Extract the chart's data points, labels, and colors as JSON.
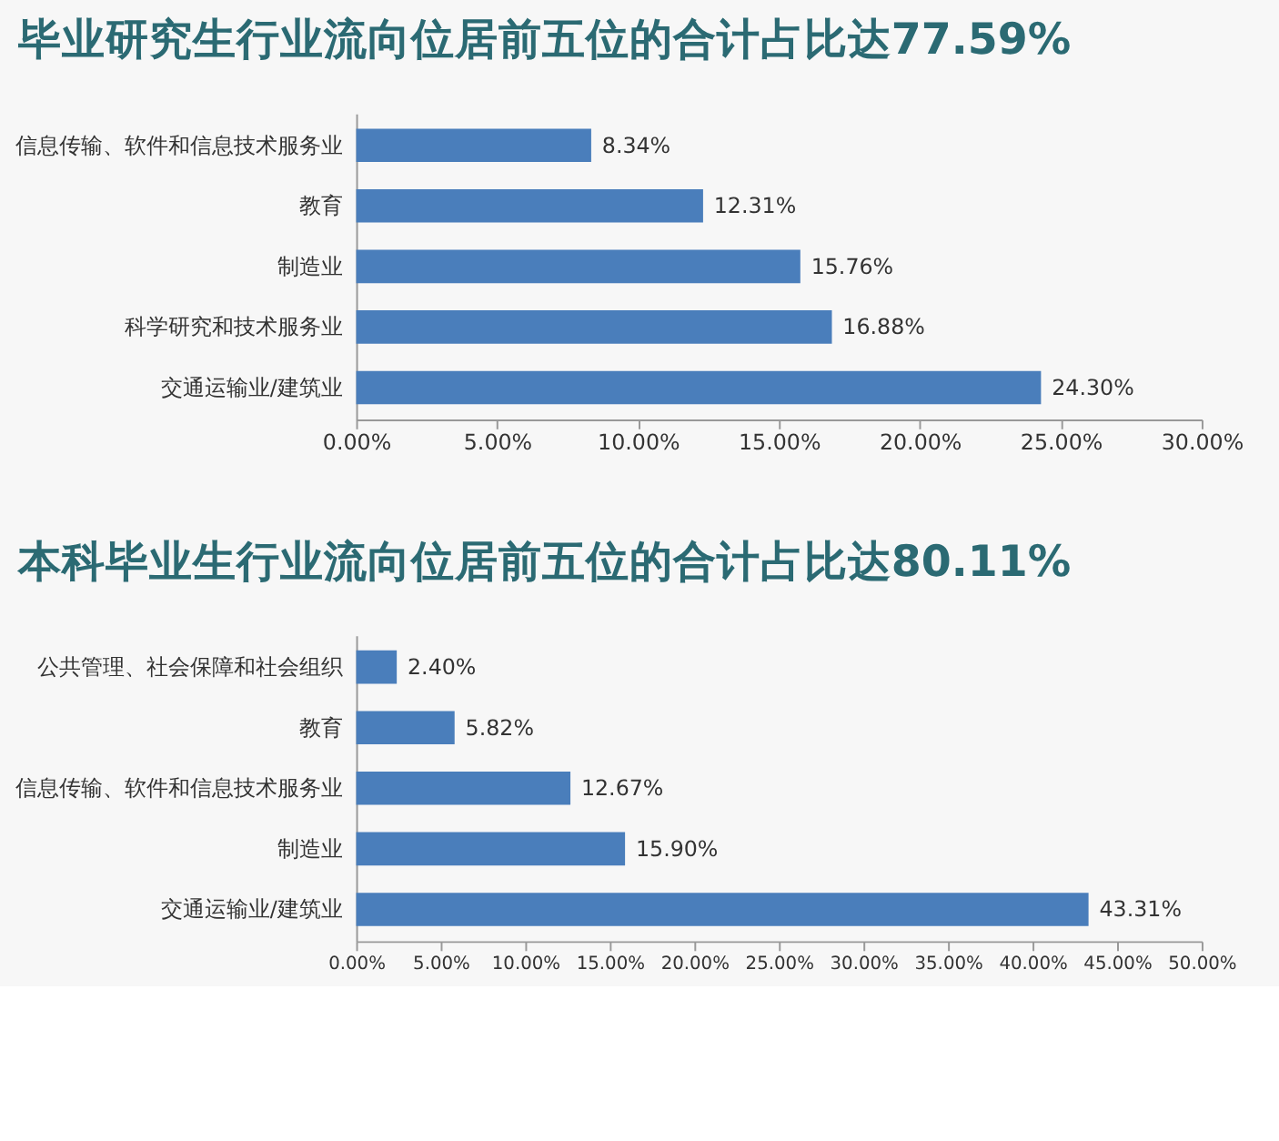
{
  "chart_data": [
    {
      "type": "bar",
      "orientation": "horizontal",
      "title": "毕业研究生行业流向位居前五位的合计占比达77.59%",
      "categories": [
        "信息传输、软件和信息技术服务业",
        "教育",
        "制造业",
        "科学研究和技术服务业",
        "交通运输业/建筑业"
      ],
      "values": [
        8.34,
        12.31,
        15.76,
        16.88,
        24.3
      ],
      "value_labels": [
        "8.34%",
        "12.31%",
        "15.76%",
        "16.88%",
        "24.30%"
      ],
      "color": "#4a7ebb",
      "xlim": [
        0,
        30
      ],
      "xticks": [
        {
          "value": 0,
          "label": "0.00%"
        },
        {
          "value": 5,
          "label": "5.00%"
        },
        {
          "value": 10,
          "label": "10.00%"
        },
        {
          "value": 15,
          "label": "15.00%"
        },
        {
          "value": 20,
          "label": "20.00%"
        },
        {
          "value": 25,
          "label": "25.00%"
        },
        {
          "value": 30,
          "label": "30.00%"
        }
      ]
    },
    {
      "type": "bar",
      "orientation": "horizontal",
      "title": "本科毕业生行业流向位居前五位的合计占比达80.11%",
      "categories": [
        "公共管理、社会保障和社会组织",
        "教育",
        "信息传输、软件和信息技术服务业",
        "制造业",
        "交通运输业/建筑业"
      ],
      "values": [
        2.4,
        5.82,
        12.67,
        15.9,
        43.31
      ],
      "value_labels": [
        "2.40%",
        "5.82%",
        "12.67%",
        "15.90%",
        "43.31%"
      ],
      "color": "#4a7ebb",
      "xlim": [
        0,
        50
      ],
      "xticks": [
        {
          "value": 0,
          "label": "0.00%"
        },
        {
          "value": 5,
          "label": "5.00%"
        },
        {
          "value": 10,
          "label": "10.00%"
        },
        {
          "value": 15,
          "label": "15.00%"
        },
        {
          "value": 20,
          "label": "20.00%"
        },
        {
          "value": 25,
          "label": "25.00%"
        },
        {
          "value": 30,
          "label": "30.00%"
        },
        {
          "value": 35,
          "label": "35.00%"
        },
        {
          "value": 40,
          "label": "40.00%"
        },
        {
          "value": 45,
          "label": "45.00%"
        },
        {
          "value": 50,
          "label": "50.00%"
        }
      ]
    }
  ]
}
